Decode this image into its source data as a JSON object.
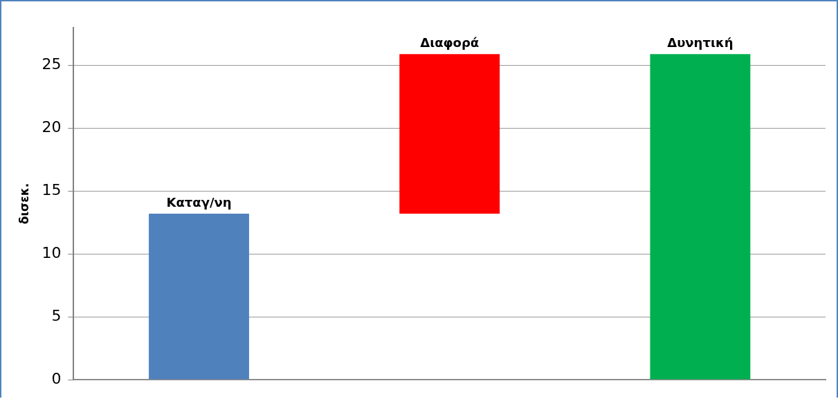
{
  "chart_data": {
    "type": "bar",
    "ylabel": "δισεκ.",
    "categories": [
      "Καταγ/νη",
      "Διαφορά",
      "Δυνητική"
    ],
    "base": [
      0,
      13.2,
      0
    ],
    "values": [
      13.2,
      12.7,
      25.9
    ],
    "colors": [
      "#4f81bd",
      "#ff0000",
      "#00b050"
    ],
    "ylim": [
      0,
      28
    ],
    "yticks": [
      0,
      5,
      10,
      15,
      20,
      25
    ],
    "grid": "y",
    "tick_labels": "y",
    "legend": false
  }
}
